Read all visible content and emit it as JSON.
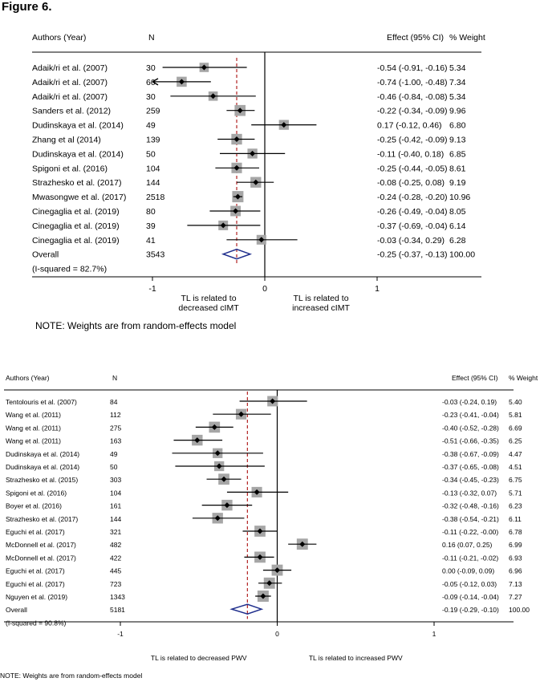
{
  "figure_title": "Figure 6.",
  "chart_data": [
    {
      "type": "forest",
      "header": {
        "study": "Authors (Year)",
        "n": "N",
        "effect": "Effect (95% CI)",
        "weight": "% Weight"
      },
      "xlim": [
        -1.95,
        2.0
      ],
      "xticks": [
        -1,
        0,
        1
      ],
      "xtick_labels": [
        "-1",
        "0",
        "1"
      ],
      "overall_line": -0.25,
      "studies": [
        {
          "label": "Adaik/ri et al. (2007)",
          "n": "30",
          "es": -0.54,
          "lo": -0.91,
          "hi": -0.16,
          "effect_text": "-0.54 (-0.91, -0.16)",
          "weight_text": "5.34",
          "weight": 5.34
        },
        {
          "label": "Adaik/ri et al. (2007)",
          "n": "60",
          "es": -0.74,
          "lo": -1.0,
          "hi": -0.48,
          "effect_text": "-0.74 (-1.00, -0.48)",
          "weight_text": "7.34",
          "weight": 7.34,
          "arrow_left": true
        },
        {
          "label": "Adaik/ri et al. (2007)",
          "n": "30",
          "es": -0.46,
          "lo": -0.84,
          "hi": -0.08,
          "effect_text": "-0.46 (-0.84, -0.08)",
          "weight_text": "5.34",
          "weight": 5.34
        },
        {
          "label": "Sanders et al. (2012)",
          "n": "259",
          "es": -0.22,
          "lo": -0.34,
          "hi": -0.09,
          "effect_text": "-0.22 (-0.34, -0.09)",
          "weight_text": "9.96",
          "weight": 9.96
        },
        {
          "label": "Dudinskaya et al. (2014)",
          "n": "49",
          "es": 0.17,
          "lo": -0.12,
          "hi": 0.46,
          "effect_text": "0.17 (-0.12, 0.46)",
          "weight_text": "6.80",
          "weight": 6.8
        },
        {
          "label": "Zhang et al (2014)",
          "n": "139",
          "es": -0.25,
          "lo": -0.42,
          "hi": -0.09,
          "effect_text": "-0.25 (-0.42, -0.09)",
          "weight_text": "9.13",
          "weight": 9.13
        },
        {
          "label": "Dudinskaya et al. (2014)",
          "n": "50",
          "es": -0.11,
          "lo": -0.4,
          "hi": 0.18,
          "effect_text": "-0.11 (-0.40, 0.18)",
          "weight_text": "6.85",
          "weight": 6.85
        },
        {
          "label": "Spigoni et al. (2016)",
          "n": "104",
          "es": -0.25,
          "lo": -0.44,
          "hi": -0.05,
          "effect_text": "-0.25 (-0.44, -0.05)",
          "weight_text": "8.61",
          "weight": 8.61
        },
        {
          "label": "Strazhesko et al. (2017)",
          "n": "144",
          "es": -0.08,
          "lo": -0.25,
          "hi": 0.08,
          "effect_text": "-0.08 (-0.25, 0.08)",
          "weight_text": "9.19",
          "weight": 9.19
        },
        {
          "label": "Mwasongwe et al. (2017)",
          "n": "2518",
          "es": -0.24,
          "lo": -0.28,
          "hi": -0.2,
          "effect_text": "-0.24 (-0.28, -0.20)",
          "weight_text": "10.96",
          "weight": 10.96
        },
        {
          "label": "Cinegaglia et al. (2019)",
          "n": "80",
          "es": -0.26,
          "lo": -0.49,
          "hi": -0.04,
          "effect_text": "-0.26 (-0.49, -0.04)",
          "weight_text": "8.05",
          "weight": 8.05
        },
        {
          "label": "Cinegaglia et al. (2019)",
          "n": "39",
          "es": -0.37,
          "lo": -0.69,
          "hi": -0.04,
          "effect_text": "-0.37 (-0.69, -0.04)",
          "weight_text": "6.14",
          "weight": 6.14
        },
        {
          "label": "Cinegaglia et al. (2019)",
          "n": "41",
          "es": -0.03,
          "lo": -0.34,
          "hi": 0.29,
          "effect_text": "-0.03 (-0.34, 0.29)",
          "weight_text": "6.28",
          "weight": 6.28
        }
      ],
      "overall": {
        "label": "Overall",
        "n": "3543",
        "es": -0.25,
        "lo": -0.37,
        "hi": -0.13,
        "effect_text": "-0.25 (-0.37, -0.13)",
        "weight_text": "100.00"
      },
      "heterogeneity": "(I-squared = 82.7%)",
      "left_annotation": [
        "TL is related to",
        "decreased cIMT"
      ],
      "right_annotation": [
        "TL is related to",
        "increased cIMT"
      ],
      "note": "NOTE: Weights are from random-effects model"
    },
    {
      "type": "forest",
      "header": {
        "study": "Authors (Year)",
        "n": "N",
        "effect": "Effect (95% CI)",
        "weight": "% Weight"
      },
      "xlim": [
        -1.95,
        2.0
      ],
      "xticks": [
        -1,
        0,
        1
      ],
      "xtick_labels": [
        "-1",
        "0",
        "1"
      ],
      "overall_line": -0.19,
      "studies": [
        {
          "label": "Tentolouris et al. (2007)",
          "n": "84",
          "es": -0.03,
          "lo": -0.24,
          "hi": 0.19,
          "effect_text": "-0.03 (-0.24, 0.19)",
          "weight_text": "5.40",
          "weight": 5.4
        },
        {
          "label": "Wang et al. (2011)",
          "n": "112",
          "es": -0.23,
          "lo": -0.41,
          "hi": -0.04,
          "effect_text": "-0.23 (-0.41, -0.04)",
          "weight_text": "5.81",
          "weight": 5.81
        },
        {
          "label": "Wang et al. (2011)",
          "n": "275",
          "es": -0.4,
          "lo": -0.52,
          "hi": -0.28,
          "effect_text": "-0.40 (-0.52, -0.28)",
          "weight_text": "6.69",
          "weight": 6.69
        },
        {
          "label": "Wang et al. (2011)",
          "n": "163",
          "es": -0.51,
          "lo": -0.66,
          "hi": -0.35,
          "effect_text": "-0.51 (-0.66, -0.35)",
          "weight_text": "6.25",
          "weight": 6.25
        },
        {
          "label": "Dudinskaya et al. (2014)",
          "n": "49",
          "es": -0.38,
          "lo": -0.67,
          "hi": -0.09,
          "effect_text": "-0.38 (-0.67, -0.09)",
          "weight_text": "4.47",
          "weight": 4.47
        },
        {
          "label": "Dudinskaya et al. (2014)",
          "n": "50",
          "es": -0.37,
          "lo": -0.65,
          "hi": -0.08,
          "effect_text": "-0.37 (-0.65, -0.08)",
          "weight_text": "4.51",
          "weight": 4.51
        },
        {
          "label": "Strazhesko et al. (2015)",
          "n": "303",
          "es": -0.34,
          "lo": -0.45,
          "hi": -0.23,
          "effect_text": "-0.34 (-0.45, -0.23)",
          "weight_text": "6.75",
          "weight": 6.75
        },
        {
          "label": "Spigoni et al. (2016)",
          "n": "104",
          "es": -0.13,
          "lo": -0.32,
          "hi": 0.07,
          "effect_text": "-0.13 (-0.32, 0.07)",
          "weight_text": "5.71",
          "weight": 5.71
        },
        {
          "label": "Boyer et al. (2016)",
          "n": "161",
          "es": -0.32,
          "lo": -0.48,
          "hi": -0.16,
          "effect_text": "-0.32 (-0.48, -0.16)",
          "weight_text": "6.23",
          "weight": 6.23
        },
        {
          "label": "Strazhesko et al. (2017)",
          "n": "144",
          "es": -0.38,
          "lo": -0.54,
          "hi": -0.21,
          "effect_text": "-0.38 (-0.54, -0.21)",
          "weight_text": "6.11",
          "weight": 6.11
        },
        {
          "label": "Eguchi et al. (2017)",
          "n": "321",
          "es": -0.11,
          "lo": -0.22,
          "hi": 0.0,
          "effect_text": "-0.11 (-0.22, -0.00)",
          "weight_text": "6.78",
          "weight": 6.78
        },
        {
          "label": "McDonnell et al. (2017)",
          "n": "482",
          "es": 0.16,
          "lo": 0.07,
          "hi": 0.25,
          "effect_text": "0.16 (0.07, 0.25)",
          "weight_text": "6.99",
          "weight": 6.99
        },
        {
          "label": "McDonnell et al. (2017)",
          "n": "422",
          "es": -0.11,
          "lo": -0.21,
          "hi": -0.02,
          "effect_text": "-0.11 (-0.21, -0.02)",
          "weight_text": "6.93",
          "weight": 6.93
        },
        {
          "label": "Eguchi et al. (2017)",
          "n": "445",
          "es": 0.0,
          "lo": -0.09,
          "hi": 0.09,
          "effect_text": "0.00 (-0.09, 0.09)",
          "weight_text": "6.96",
          "weight": 6.96
        },
        {
          "label": "Eguchi et al. (2017)",
          "n": "723",
          "es": -0.05,
          "lo": -0.12,
          "hi": 0.03,
          "effect_text": "-0.05 (-0.12, 0.03)",
          "weight_text": "7.13",
          "weight": 7.13
        },
        {
          "label": "Nguyen et al. (2019)",
          "n": "1343",
          "es": -0.09,
          "lo": -0.14,
          "hi": -0.04,
          "effect_text": "-0.09 (-0.14, -0.04)",
          "weight_text": "7.27",
          "weight": 7.27
        }
      ],
      "overall": {
        "label": "Overall",
        "n": "5181",
        "es": -0.19,
        "lo": -0.29,
        "hi": -0.1,
        "effect_text": "-0.19 (-0.29, -0.10)",
        "weight_text": "100.00"
      },
      "heterogeneity": "(I-squared = 90.8%)",
      "left_annotation": [
        "TL is related to decreased PWV"
      ],
      "right_annotation": [
        "TL is related to increased PWV"
      ],
      "note": "NOTE: Weights are from random-effects model"
    }
  ],
  "colors": {
    "marker_box": "#a6a6a6",
    "overall_diamond": "#1f2e8c",
    "overall_line": "#b22222",
    "axis": "#000000"
  }
}
